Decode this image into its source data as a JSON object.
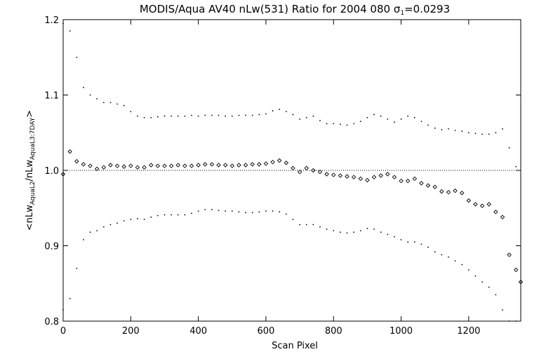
{
  "chart_data": {
    "type": "scatter",
    "title_main": "MODIS/Aqua AV40 nLw(531) Ratio for 2004 080 ",
    "title_sigma": "σ",
    "title_sigma_sub": "1",
    "title_sigma_value": "=0.0293",
    "xlabel": "Scan Pixel",
    "ylabel": {
      "prefix": "<nLw",
      "sub1": "AquaL2",
      "mid": "/nLw",
      "sub2": "AquaL3:7DAY",
      "suffix": ">"
    },
    "xlim": [
      0,
      1354
    ],
    "ylim": [
      0.8,
      1.2
    ],
    "xticks": [
      0,
      200,
      400,
      600,
      800,
      1000,
      1200
    ],
    "xtick_labels": [
      "0",
      "200",
      "400",
      "600",
      "800",
      "1000",
      "1200"
    ],
    "yticks": [
      0.8,
      0.9,
      1.0,
      1.1,
      1.2
    ],
    "ytick_labels": [
      "0.8",
      "0.9",
      "1.0",
      "1.1",
      "1.2"
    ],
    "reference_line": 1.0,
    "grid": false,
    "series": [
      {
        "role": "mean",
        "marker": "diamond",
        "x": [
          0,
          20,
          40,
          60,
          80,
          100,
          120,
          140,
          160,
          180,
          200,
          220,
          240,
          260,
          280,
          300,
          320,
          340,
          360,
          380,
          400,
          420,
          440,
          460,
          480,
          500,
          520,
          540,
          560,
          580,
          600,
          620,
          640,
          660,
          680,
          700,
          720,
          740,
          760,
          780,
          800,
          820,
          840,
          860,
          880,
          900,
          920,
          940,
          960,
          980,
          1000,
          1020,
          1040,
          1060,
          1080,
          1100,
          1120,
          1140,
          1160,
          1180,
          1200,
          1220,
          1240,
          1260,
          1280,
          1300,
          1320,
          1340,
          1354
        ],
        "y": [
          0.995,
          1.025,
          1.012,
          1.008,
          1.006,
          1.002,
          1.004,
          1.007,
          1.006,
          1.005,
          1.006,
          1.004,
          1.004,
          1.007,
          1.006,
          1.006,
          1.006,
          1.007,
          1.006,
          1.006,
          1.007,
          1.008,
          1.008,
          1.007,
          1.007,
          1.006,
          1.007,
          1.007,
          1.008,
          1.008,
          1.009,
          1.011,
          1.013,
          1.01,
          1.003,
          0.998,
          1.003,
          1.0,
          0.998,
          0.995,
          0.994,
          0.993,
          0.992,
          0.991,
          0.989,
          0.987,
          0.991,
          0.993,
          0.995,
          0.991,
          0.986,
          0.986,
          0.989,
          0.983,
          0.98,
          0.978,
          0.972,
          0.971,
          0.973,
          0.97,
          0.96,
          0.955,
          0.953,
          0.955,
          0.945,
          0.938,
          0.888,
          0.868,
          0.852
        ]
      },
      {
        "role": "upper",
        "marker": "dot",
        "x": [
          0,
          20,
          40,
          60,
          80,
          100,
          120,
          140,
          160,
          180,
          200,
          220,
          240,
          260,
          280,
          300,
          320,
          340,
          360,
          380,
          400,
          420,
          440,
          460,
          480,
          500,
          520,
          540,
          560,
          580,
          600,
          620,
          640,
          660,
          680,
          700,
          720,
          740,
          760,
          780,
          800,
          820,
          840,
          860,
          880,
          900,
          920,
          940,
          960,
          980,
          1000,
          1020,
          1040,
          1060,
          1080,
          1100,
          1120,
          1140,
          1160,
          1180,
          1200,
          1220,
          1240,
          1260,
          1280,
          1300,
          1320,
          1340
        ],
        "y": [
          1.195,
          1.185,
          1.15,
          1.11,
          1.1,
          1.095,
          1.09,
          1.09,
          1.088,
          1.086,
          1.078,
          1.072,
          1.07,
          1.07,
          1.071,
          1.072,
          1.072,
          1.072,
          1.072,
          1.073,
          1.072,
          1.073,
          1.073,
          1.073,
          1.072,
          1.072,
          1.073,
          1.073,
          1.073,
          1.074,
          1.075,
          1.079,
          1.081,
          1.078,
          1.074,
          1.068,
          1.07,
          1.072,
          1.066,
          1.062,
          1.062,
          1.061,
          1.06,
          1.062,
          1.065,
          1.07,
          1.074,
          1.072,
          1.068,
          1.064,
          1.068,
          1.072,
          1.07,
          1.065,
          1.06,
          1.056,
          1.054,
          1.055,
          1.053,
          1.052,
          1.05,
          1.049,
          1.048,
          1.048,
          1.05,
          1.055,
          1.03,
          1.005
        ]
      },
      {
        "role": "lower",
        "marker": "dot",
        "x": [
          0,
          20,
          40,
          60,
          80,
          100,
          120,
          140,
          160,
          180,
          200,
          220,
          240,
          260,
          280,
          300,
          320,
          340,
          360,
          380,
          400,
          420,
          440,
          460,
          480,
          500,
          520,
          540,
          560,
          580,
          600,
          620,
          640,
          660,
          680,
          700,
          720,
          740,
          760,
          780,
          800,
          820,
          840,
          860,
          880,
          900,
          920,
          940,
          960,
          980,
          1000,
          1020,
          1040,
          1060,
          1080,
          1100,
          1120,
          1140,
          1160,
          1180,
          1200,
          1220,
          1240,
          1260,
          1280,
          1300,
          1320,
          1340
        ],
        "y": [
          0.815,
          0.83,
          0.87,
          0.908,
          0.918,
          0.92,
          0.925,
          0.928,
          0.93,
          0.933,
          0.935,
          0.936,
          0.935,
          0.938,
          0.94,
          0.941,
          0.941,
          0.941,
          0.941,
          0.943,
          0.946,
          0.948,
          0.948,
          0.947,
          0.946,
          0.946,
          0.945,
          0.944,
          0.944,
          0.945,
          0.946,
          0.946,
          0.945,
          0.942,
          0.935,
          0.928,
          0.928,
          0.928,
          0.925,
          0.922,
          0.92,
          0.918,
          0.917,
          0.918,
          0.92,
          0.923,
          0.922,
          0.918,
          0.915,
          0.912,
          0.908,
          0.905,
          0.905,
          0.902,
          0.898,
          0.892,
          0.888,
          0.885,
          0.88,
          0.875,
          0.868,
          0.86,
          0.852,
          0.845,
          0.835,
          0.815,
          0.8,
          0.8
        ]
      }
    ]
  }
}
